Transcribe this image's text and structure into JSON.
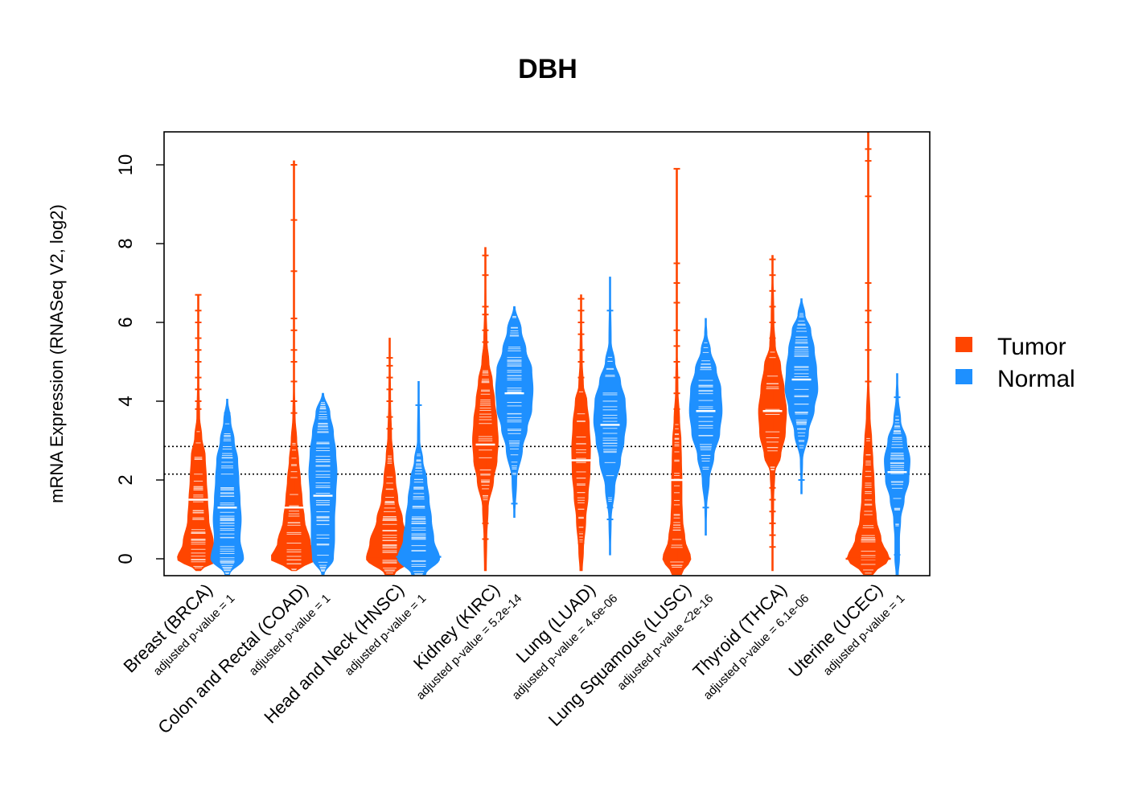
{
  "chart_data": {
    "type": "beanplot",
    "title": "DBH",
    "ylabel": "mRNA Expression (RNASeq V2, log2)",
    "xlabel": "",
    "ylim": [
      -0.4,
      10.9
    ],
    "yticks": [
      0,
      2,
      4,
      6,
      8,
      10
    ],
    "reference_lines": [
      2.15,
      2.85
    ],
    "colors": {
      "Tumor": "#FF4500",
      "Normal": "#1E90FF"
    },
    "legend": [
      "Tumor",
      "Normal"
    ],
    "categories": [
      {
        "label": "Breast (BRCA)",
        "pvalue": "adjusted p-value = 1",
        "tumor": {
          "min": -0.3,
          "max": 6.7,
          "median": 1.5,
          "density": [
            [
              -0.3,
              0.1
            ],
            [
              0,
              0.9
            ],
            [
              0.4,
              0.65
            ],
            [
              1,
              0.45
            ],
            [
              1.5,
              0.4
            ],
            [
              2,
              0.35
            ],
            [
              2.6,
              0.3
            ],
            [
              3.1,
              0.15
            ],
            [
              3.6,
              0.06
            ],
            [
              4.5,
              0.03
            ],
            [
              6.7,
              0.01
            ]
          ],
          "outliers": [
            3.8,
            4.0,
            4.3,
            4.6,
            5.0,
            5.3,
            5.6,
            6.0,
            6.3,
            6.7
          ]
        },
        "normal": {
          "min": -0.4,
          "max": 4.05,
          "median": 1.3,
          "density": [
            [
              -0.4,
              0.1
            ],
            [
              0,
              0.7
            ],
            [
              0.5,
              0.55
            ],
            [
              1,
              0.6
            ],
            [
              1.5,
              0.55
            ],
            [
              2,
              0.5
            ],
            [
              2.5,
              0.45
            ],
            [
              3,
              0.3
            ],
            [
              3.5,
              0.15
            ],
            [
              4.05,
              0.02
            ]
          ],
          "outliers": [
            3.7
          ]
        }
      },
      {
        "label": "Colon and Rectal (COAD)",
        "pvalue": "adjusted p-value = 1",
        "tumor": {
          "min": -0.3,
          "max": 10.1,
          "median": 1.3,
          "density": [
            [
              -0.3,
              0.1
            ],
            [
              0,
              1
            ],
            [
              0.4,
              0.7
            ],
            [
              1,
              0.45
            ],
            [
              1.5,
              0.35
            ],
            [
              2,
              0.28
            ],
            [
              2.5,
              0.2
            ],
            [
              3,
              0.12
            ],
            [
              3.6,
              0.05
            ],
            [
              4.5,
              0.02
            ],
            [
              10.1,
              0.005
            ]
          ],
          "outliers": [
            3.7,
            4.0,
            4.5,
            5.0,
            5.3,
            5.8,
            6.1,
            7.3,
            8.6,
            10.0
          ]
        },
        "normal": {
          "min": -0.4,
          "max": 4.2,
          "median": 1.6,
          "density": [
            [
              -0.4,
              0.05
            ],
            [
              0,
              0.45
            ],
            [
              0.5,
              0.5
            ],
            [
              1,
              0.5
            ],
            [
              1.6,
              0.55
            ],
            [
              2.2,
              0.6
            ],
            [
              2.7,
              0.55
            ],
            [
              3.2,
              0.45
            ],
            [
              3.7,
              0.3
            ],
            [
              4.2,
              0.03
            ]
          ],
          "outliers": []
        }
      },
      {
        "label": "Head and Neck (HNSC)",
        "pvalue": "adjusted p-value = 1",
        "tumor": {
          "min": -0.4,
          "max": 5.6,
          "median": 0.0,
          "density": [
            [
              -0.4,
              0.2
            ],
            [
              0,
              1
            ],
            [
              0.4,
              0.85
            ],
            [
              1,
              0.55
            ],
            [
              1.5,
              0.35
            ],
            [
              2,
              0.25
            ],
            [
              2.6,
              0.15
            ],
            [
              3.1,
              0.08
            ],
            [
              4,
              0.04
            ],
            [
              5.6,
              0.01
            ]
          ],
          "outliers": [
            3.3,
            3.6,
            4.0,
            4.3,
            4.6,
            4.9,
            5.1
          ]
        },
        "normal": {
          "min": -0.4,
          "max": 4.5,
          "median": 0.05,
          "density": [
            [
              -0.4,
              0.3
            ],
            [
              0,
              0.9
            ],
            [
              0.5,
              0.65
            ],
            [
              1,
              0.55
            ],
            [
              1.5,
              0.45
            ],
            [
              2,
              0.35
            ],
            [
              2.5,
              0.18
            ],
            [
              3,
              0.05
            ],
            [
              4.5,
              0.02
            ]
          ],
          "outliers": [
            3.9
          ]
        }
      },
      {
        "label": "Kidney (KIRC)",
        "pvalue": "adjusted p-value = 5.2e-14",
        "tumor": {
          "min": -0.3,
          "max": 7.9,
          "median": 2.9,
          "density": [
            [
              -0.3,
              0.04
            ],
            [
              0.5,
              0.06
            ],
            [
              1.3,
              0.12
            ],
            [
              2,
              0.35
            ],
            [
              2.5,
              0.5
            ],
            [
              3,
              0.55
            ],
            [
              3.5,
              0.5
            ],
            [
              4,
              0.4
            ],
            [
              4.5,
              0.3
            ],
            [
              5,
              0.15
            ],
            [
              5.5,
              0.07
            ],
            [
              6.5,
              0.03
            ],
            [
              7.9,
              0.01
            ]
          ],
          "outliers": [
            0.5,
            0.9,
            1.3,
            5.2,
            5.5,
            5.8,
            6.2,
            6.4,
            7.2,
            7.7
          ]
        },
        "normal": {
          "min": 1.05,
          "max": 6.4,
          "median": 4.2,
          "density": [
            [
              1.05,
              0.02
            ],
            [
              2,
              0.1
            ],
            [
              2.8,
              0.35
            ],
            [
              3.3,
              0.55
            ],
            [
              3.8,
              0.75
            ],
            [
              4.3,
              0.8
            ],
            [
              4.8,
              0.75
            ],
            [
              5.3,
              0.5
            ],
            [
              5.8,
              0.3
            ],
            [
              6.4,
              0.03
            ]
          ],
          "outliers": [
            1.4
          ]
        }
      },
      {
        "label": "Lung (LUAD)",
        "pvalue": "adjusted p-value = 4.6e-06",
        "tumor": {
          "min": -0.3,
          "max": 6.7,
          "median": 2.5,
          "density": [
            [
              -0.3,
              0.05
            ],
            [
              0.2,
              0.1
            ],
            [
              1,
              0.2
            ],
            [
              1.6,
              0.3
            ],
            [
              2.2,
              0.38
            ],
            [
              2.8,
              0.4
            ],
            [
              3.4,
              0.35
            ],
            [
              4,
              0.25
            ],
            [
              4.4,
              0.1
            ],
            [
              5,
              0.05
            ],
            [
              6.7,
              0.01
            ]
          ],
          "outliers": [
            0.4,
            0.7,
            4.6,
            5.0,
            5.3,
            5.7,
            6.0,
            6.3,
            6.6
          ]
        },
        "normal": {
          "min": 0.1,
          "max": 7.15,
          "median": 3.4,
          "density": [
            [
              0.1,
              0.02
            ],
            [
              1,
              0.05
            ],
            [
              1.8,
              0.2
            ],
            [
              2.5,
              0.45
            ],
            [
              3,
              0.6
            ],
            [
              3.5,
              0.7
            ],
            [
              4,
              0.65
            ],
            [
              4.5,
              0.45
            ],
            [
              5,
              0.2
            ],
            [
              5.5,
              0.05
            ],
            [
              7.15,
              0.01
            ]
          ],
          "outliers": [
            1.0,
            1.3,
            6.3
          ]
        }
      },
      {
        "label": "Lung Squamous (LUSC)",
        "pvalue": "adjusted p-value <2e-16",
        "tumor": {
          "min": -0.4,
          "max": 9.9,
          "median": 2.0,
          "density": [
            [
              -0.4,
              0.2
            ],
            [
              0,
              0.6
            ],
            [
              0.5,
              0.35
            ],
            [
              1,
              0.25
            ],
            [
              1.5,
              0.22
            ],
            [
              2,
              0.22
            ],
            [
              2.5,
              0.2
            ],
            [
              3,
              0.18
            ],
            [
              3.5,
              0.12
            ],
            [
              4.3,
              0.05
            ],
            [
              5.5,
              0.02
            ],
            [
              9.9,
              0.005
            ]
          ],
          "outliers": [
            3.8,
            4.2,
            4.6,
            5.0,
            5.4,
            5.8,
            6.5,
            7.0,
            7.5,
            9.9
          ]
        },
        "normal": {
          "min": 0.6,
          "max": 6.1,
          "median": 3.75,
          "density": [
            [
              0.6,
              0.01
            ],
            [
              1.3,
              0.04
            ],
            [
              2,
              0.15
            ],
            [
              2.6,
              0.35
            ],
            [
              3.2,
              0.6
            ],
            [
              3.75,
              0.7
            ],
            [
              4.3,
              0.65
            ],
            [
              4.8,
              0.45
            ],
            [
              5.3,
              0.2
            ],
            [
              5.7,
              0.05
            ],
            [
              6.1,
              0.01
            ]
          ],
          "outliers": [
            1.3
          ]
        }
      },
      {
        "label": "Thyroid (THCA)",
        "pvalue": "adjusted p-value = 6.1e-06",
        "tumor": {
          "min": -0.3,
          "max": 7.7,
          "median": 3.75,
          "density": [
            [
              -0.3,
              0.01
            ],
            [
              0.5,
              0.03
            ],
            [
              1.5,
              0.05
            ],
            [
              2.2,
              0.1
            ],
            [
              2.6,
              0.35
            ],
            [
              3.2,
              0.55
            ],
            [
              3.75,
              0.6
            ],
            [
              4.3,
              0.5
            ],
            [
              4.9,
              0.35
            ],
            [
              5.4,
              0.12
            ],
            [
              6,
              0.06
            ],
            [
              7.7,
              0.01
            ]
          ],
          "outliers": [
            0.3,
            0.6,
            0.9,
            1.2,
            1.5,
            1.8,
            5.6,
            6.0,
            6.4,
            6.8,
            7.2,
            7.6
          ]
        },
        "normal": {
          "min": 1.65,
          "max": 6.6,
          "median": 4.55,
          "density": [
            [
              1.65,
              0.01
            ],
            [
              2.5,
              0.05
            ],
            [
              3.2,
              0.3
            ],
            [
              3.8,
              0.55
            ],
            [
              4.3,
              0.7
            ],
            [
              4.8,
              0.65
            ],
            [
              5.3,
              0.55
            ],
            [
              5.8,
              0.4
            ],
            [
              6.2,
              0.15
            ],
            [
              6.6,
              0.02
            ]
          ],
          "outliers": [
            2.0
          ]
        }
      },
      {
        "label": "Uterine (UCEC)",
        "pvalue": "adjusted p-value = 1",
        "tumor": {
          "min": -0.4,
          "max": 10.9,
          "median": 0.0,
          "density": [
            [
              -0.4,
              0.2
            ],
            [
              0,
              0.9
            ],
            [
              0.5,
              0.55
            ],
            [
              1,
              0.35
            ],
            [
              1.5,
              0.28
            ],
            [
              2,
              0.25
            ],
            [
              2.5,
              0.2
            ],
            [
              3,
              0.15
            ],
            [
              3.6,
              0.08
            ],
            [
              4.5,
              0.03
            ],
            [
              10.9,
              0.005
            ]
          ],
          "outliers": [
            4.5,
            5.3,
            6.0,
            6.3,
            7.0,
            9.2,
            10.1,
            10.4
          ]
        },
        "normal": {
          "min": -0.4,
          "max": 4.7,
          "median": 2.2,
          "density": [
            [
              -0.4,
              0.05
            ],
            [
              0,
              0.1
            ],
            [
              0.5,
              0.1
            ],
            [
              1,
              0.15
            ],
            [
              1.5,
              0.3
            ],
            [
              2,
              0.5
            ],
            [
              2.5,
              0.55
            ],
            [
              3,
              0.4
            ],
            [
              3.5,
              0.15
            ],
            [
              4.1,
              0.05
            ],
            [
              4.7,
              0.01
            ]
          ],
          "outliers": [
            0.1,
            4.1
          ]
        }
      }
    ]
  }
}
